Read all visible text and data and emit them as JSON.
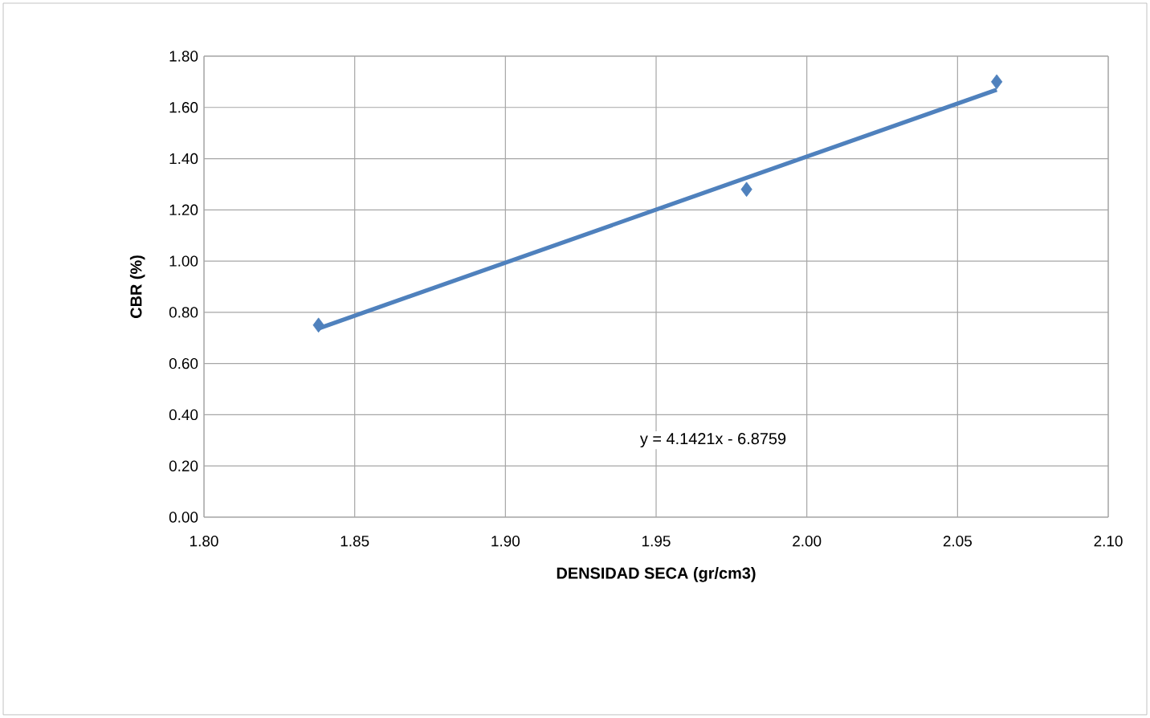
{
  "chart_data": {
    "type": "scatter",
    "xlabel": "DENSIDAD SECA (gr/cm3)",
    "ylabel": "CBR (%)",
    "series": [
      {
        "color": "#4f81bd",
        "marker": "diamond",
        "x": [
          1.838,
          1.98,
          2.063
        ],
        "values": [
          0.75,
          1.28,
          1.7
        ]
      },
      {
        "type": "line",
        "color": "#4f81bd",
        "marker": "none",
        "line_style": "solid",
        "x": [
          1.838,
          2.063
        ],
        "values": [
          0.737,
          1.669
        ]
      }
    ],
    "xlim": [
      1.8,
      2.1
    ],
    "xticks": [
      {
        "value": 1.8,
        "label": "1.80"
      },
      {
        "value": 1.85,
        "label": "1.85"
      },
      {
        "value": 1.9,
        "label": "1.90"
      },
      {
        "value": 1.95,
        "label": "1.95"
      },
      {
        "value": 2.0,
        "label": "2.00"
      },
      {
        "value": 2.05,
        "label": "2.05"
      },
      {
        "value": 2.1,
        "label": "2.10"
      }
    ],
    "ylim": [
      0,
      1.8
    ],
    "yticks": [
      {
        "value": 0,
        "label": "0.00"
      },
      {
        "value": 0.2,
        "label": "0.20"
      },
      {
        "value": 0.4,
        "label": "0.40"
      },
      {
        "value": 0.6,
        "label": "0.60"
      },
      {
        "value": 0.8,
        "label": "0.80"
      },
      {
        "value": 1.0,
        "label": "1.00"
      },
      {
        "value": 1.2,
        "label": "1.20"
      },
      {
        "value": 1.4,
        "label": "1.40"
      },
      {
        "value": 1.6,
        "label": "1.60"
      },
      {
        "value": 1.8,
        "label": "1.80"
      }
    ],
    "grid": true,
    "annotations": [
      "y = 4.1421x - 6.8759"
    ]
  }
}
